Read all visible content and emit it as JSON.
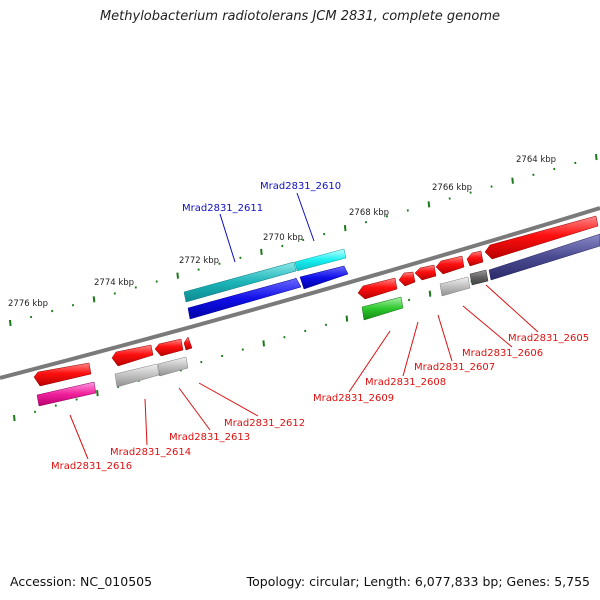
{
  "title": "Methylobacterium radiotolerans JCM 2831, complete genome",
  "footer": {
    "accession": "Accession: NC_010505",
    "summary": "Topology: circular; Length: 6,077,833 bp; Genes: 5,755"
  },
  "colors": {
    "backbone": "#7a7a7a",
    "tick": "#1a7a1a",
    "label_forward": "#1010c0",
    "label_reverse": "#dd1010"
  },
  "scale_labels": [
    "2764 kbp",
    "2766 kbp",
    "2768 kbp",
    "2770 kbp",
    "2772 kbp",
    "2774 kbp",
    "2776 kbp"
  ],
  "genes": [
    {
      "name": "Mrad2831_2610",
      "strand": "forward"
    },
    {
      "name": "Mrad2831_2611",
      "strand": "forward"
    },
    {
      "name": "Mrad2831_2605",
      "strand": "reverse"
    },
    {
      "name": "Mrad2831_2606",
      "strand": "reverse"
    },
    {
      "name": "Mrad2831_2607",
      "strand": "reverse"
    },
    {
      "name": "Mrad2831_2608",
      "strand": "reverse"
    },
    {
      "name": "Mrad2831_2609",
      "strand": "reverse"
    },
    {
      "name": "Mrad2831_2612",
      "strand": "reverse"
    },
    {
      "name": "Mrad2831_2613",
      "strand": "reverse"
    },
    {
      "name": "Mrad2831_2614",
      "strand": "reverse"
    },
    {
      "name": "Mrad2831_2616",
      "strand": "reverse"
    }
  ]
}
